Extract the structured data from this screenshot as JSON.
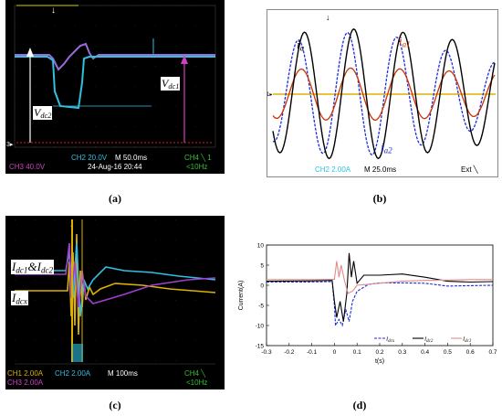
{
  "panels": {
    "a": {
      "tag": "(a)",
      "ch2": "CH2 20.0V",
      "time": "M 50.0ms",
      "ch4": "CH4 ╲ 1",
      "ch3": "CH3 40.0V",
      "date": "24-Aug-16 20:44",
      "freq": "<10Hz",
      "label_vdc1": "V",
      "sub_vdc1": "dc1",
      "label_vdc2": "V",
      "sub_vdc2": "dc2",
      "marker": "3▸"
    },
    "b": {
      "tag": "(b)",
      "ch2": "CH2 2.00A",
      "time": "M 25.0ms",
      "ext": "Ext ╲",
      "label_ia": "i",
      "sub_ia": "a",
      "label_ia1": "i",
      "sub_ia1": "a1",
      "label_ia2": "i",
      "sub_ia2": "a2",
      "marker": "1▸"
    },
    "c": {
      "tag": "(c)",
      "ch1": "CH1 2.00A",
      "ch2": "CH2 2.00A",
      "time": "M 100ms",
      "ch4": "CH4 ╲",
      "ch3": "CH3 2.00A",
      "freq": "<10Hz",
      "label_idc12_a": "I",
      "sub_idc12_a": "dc1",
      "label_idc12_amp": "&I",
      "sub_idc12_b": "dc2",
      "label_idcx": "I",
      "sub_idcx": "dcx"
    },
    "d": {
      "tag": "(d)"
    }
  },
  "colors": {
    "ch1": "#e0b000",
    "ch2": "#30c0e0",
    "ch3": "#d040c0",
    "ch4": "#30c030",
    "ia": "#000000",
    "ia1": "#cc3300",
    "ia2": "#1a2dd8"
  },
  "chart_data": {
    "type": "line",
    "xlabel": "t(s)",
    "ylabel": "Current(A)",
    "xlim": [
      -0.3,
      0.7
    ],
    "ylim": [
      -15,
      10
    ],
    "xticks": [
      -0.3,
      -0.2,
      -0.1,
      0,
      0.1,
      0.2,
      0.3,
      0.4,
      0.5,
      0.6,
      0.7
    ],
    "yticks": [
      -15,
      -10,
      -5,
      0,
      5,
      10
    ],
    "legend_position": "bottom-right",
    "series": [
      {
        "name": "I_dcx",
        "legend_main": "I",
        "legend_sub": "dcx",
        "color": "#1a2dd8",
        "style": "dash",
        "points": [
          [
            -0.3,
            0.8
          ],
          [
            -0.15,
            0.8
          ],
          [
            -0.01,
            0.9
          ],
          [
            0,
            -5
          ],
          [
            0.005,
            -10
          ],
          [
            0.02,
            -8.5
          ],
          [
            0.035,
            -10
          ],
          [
            0.05,
            -6
          ],
          [
            0.065,
            -9
          ],
          [
            0.08,
            -4
          ],
          [
            0.1,
            -1.5
          ],
          [
            0.15,
            0.2
          ],
          [
            0.2,
            0.6
          ],
          [
            0.3,
            0.6
          ],
          [
            0.4,
            0.5
          ],
          [
            0.5,
            -0.2
          ],
          [
            0.6,
            -0.1
          ],
          [
            0.7,
            0.0
          ]
        ]
      },
      {
        "name": "I_dc2",
        "legend_main": "I",
        "legend_sub": "dc2",
        "color": "#000000",
        "style": "solid",
        "points": [
          [
            -0.3,
            1.0
          ],
          [
            -0.1,
            1.1
          ],
          [
            -0.01,
            1.2
          ],
          [
            0,
            -4
          ],
          [
            0.01,
            -8
          ],
          [
            0.025,
            -4
          ],
          [
            0.04,
            -9
          ],
          [
            0.055,
            -2
          ],
          [
            0.065,
            8
          ],
          [
            0.075,
            2
          ],
          [
            0.085,
            6
          ],
          [
            0.1,
            0.5
          ],
          [
            0.13,
            2.5
          ],
          [
            0.2,
            2.5
          ],
          [
            0.3,
            2.8
          ],
          [
            0.4,
            2.0
          ],
          [
            0.5,
            1.0
          ],
          [
            0.6,
            0.8
          ],
          [
            0.7,
            0.9
          ]
        ]
      },
      {
        "name": "I_dc1",
        "legend_main": "I",
        "legend_sub": "dc1",
        "color": "#e08c8c",
        "style": "solid",
        "points": [
          [
            -0.3,
            1.4
          ],
          [
            -0.1,
            1.4
          ],
          [
            0,
            1.5
          ],
          [
            0.01,
            6
          ],
          [
            0.02,
            2
          ],
          [
            0.03,
            5
          ],
          [
            0.045,
            1
          ],
          [
            0.06,
            -2
          ],
          [
            0.08,
            -1.5
          ],
          [
            0.1,
            0
          ],
          [
            0.2,
            0.5
          ],
          [
            0.3,
            1.0
          ],
          [
            0.4,
            1.2
          ],
          [
            0.5,
            1.3
          ],
          [
            0.6,
            1.4
          ],
          [
            0.7,
            1.4
          ]
        ]
      }
    ]
  }
}
